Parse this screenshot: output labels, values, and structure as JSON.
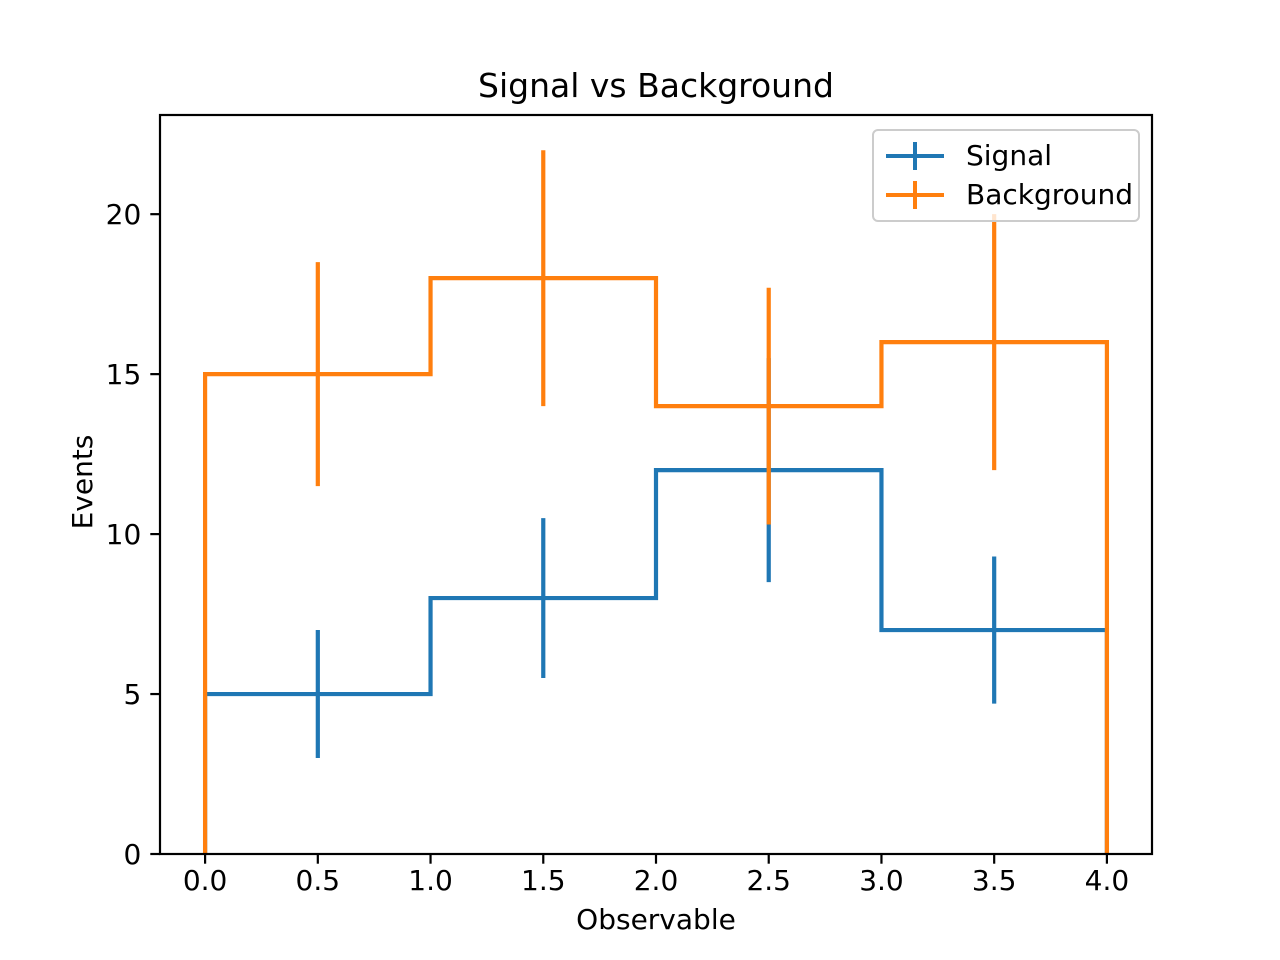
{
  "figure": {
    "title": "Signal vs Background",
    "xlabel": "Observable",
    "ylabel": "Events"
  },
  "chart_data": {
    "type": "step-histogram-with-errorbars",
    "title": "Signal vs Background",
    "xlabel": "Observable",
    "ylabel": "Events",
    "bin_edges": [
      0,
      1,
      2,
      3,
      4
    ],
    "bin_centers": [
      0.5,
      1.5,
      2.5,
      3.5
    ],
    "series": [
      {
        "name": "Signal",
        "color": "#1f77b4",
        "values": [
          5,
          8,
          12,
          7
        ],
        "errors": [
          2.0,
          2.5,
          3.5,
          2.3
        ]
      },
      {
        "name": "Background",
        "color": "#ff7f0e",
        "values": [
          15,
          18,
          14,
          16
        ],
        "errors": [
          3.5,
          4.0,
          3.7,
          4.0
        ]
      }
    ],
    "x_ticks": {
      "values": [
        0,
        0.5,
        1,
        1.5,
        2,
        2.5,
        3,
        3.5,
        4
      ],
      "labels": [
        "0.0",
        "0.5",
        "1.0",
        "1.5",
        "2.0",
        "2.5",
        "3.0",
        "3.5",
        "4.0"
      ]
    },
    "y_ticks": {
      "values": [
        0,
        5,
        10,
        15,
        20
      ],
      "labels": [
        "0",
        "5",
        "10",
        "15",
        "20"
      ]
    },
    "xlim": [
      -0.2,
      4.2
    ],
    "ylim": [
      0,
      23.1
    ],
    "grid": false,
    "legend": {
      "position": "upper right",
      "entries": [
        "Signal",
        "Background"
      ]
    },
    "axis_color": "#000000",
    "background": "#ffffff"
  }
}
